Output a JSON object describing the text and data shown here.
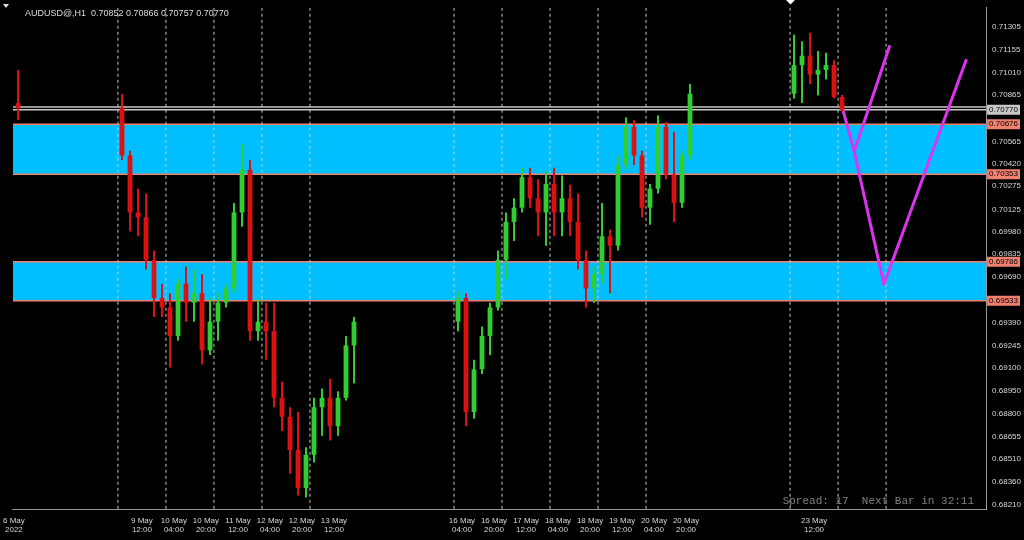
{
  "chart_data": {
    "type": "candlestick",
    "title": "AUDUSD@,H1  0.70852 0.70866 0.70757 0.70770",
    "annotations": [
      "Spread: 17  Next Bar in 32:11"
    ],
    "x": [
      "2022-05-06T22:00",
      "2022-05-09T02:00",
      "2022-05-09T06:00",
      "2022-05-09T10:00",
      "2022-05-09T14:00",
      "2022-05-09T18:00",
      "2022-05-09T22:00",
      "2022-05-10T02:00",
      "2022-05-10T06:00",
      "2022-05-10T10:00",
      "2022-05-10T14:00",
      "2022-05-10T18:00",
      "2022-05-10T22:00",
      "2022-05-11T02:00",
      "2022-05-11T06:00",
      "2022-05-11T10:00",
      "2022-05-11T14:00",
      "2022-05-11T18:00",
      "2022-05-11T22:00",
      "2022-05-12T02:00",
      "2022-05-12T06:00",
      "2022-05-12T10:00",
      "2022-05-12T14:00",
      "2022-05-12T18:00",
      "2022-05-12T22:00",
      "2022-05-13T02:00",
      "2022-05-13T06:00",
      "2022-05-13T10:00",
      "2022-05-13T14:00",
      "2022-05-13T18:00",
      "2022-05-13T22:00",
      "2022-05-16T02:00",
      "2022-05-16T06:00",
      "2022-05-16T10:00",
      "2022-05-16T14:00",
      "2022-05-16T18:00",
      "2022-05-16T22:00",
      "2022-05-17T02:00",
      "2022-05-17T06:00",
      "2022-05-17T10:00",
      "2022-05-17T14:00",
      "2022-05-17T18:00",
      "2022-05-17T22:00",
      "2022-05-18T02:00",
      "2022-05-18T06:00",
      "2022-05-18T10:00",
      "2022-05-18T14:00",
      "2022-05-18T18:00",
      "2022-05-18T22:00",
      "2022-05-19T02:00",
      "2022-05-19T06:00",
      "2022-05-19T10:00",
      "2022-05-19T14:00",
      "2022-05-19T18:00",
      "2022-05-19T22:00",
      "2022-05-20T02:00",
      "2022-05-20T06:00",
      "2022-05-20T10:00",
      "2022-05-20T14:00",
      "2022-05-20T18:00",
      "2022-05-20T22:00",
      "2022-05-23T02:00",
      "2022-05-23T06:00",
      "2022-05-23T10:00",
      "2022-05-23T14:00",
      "2022-05-23T18:00",
      "2022-05-23T22:00",
      "2022-05-24T02:00"
    ],
    "ohlc": [
      [
        0.70813,
        0.71028,
        0.70702,
        0.70782
      ],
      [
        0.70782,
        0.70874,
        0.70444,
        0.70474
      ],
      [
        0.70474,
        0.70505,
        0.69982,
        0.70105
      ],
      [
        0.70105,
        0.70259,
        0.69951,
        0.70074
      ],
      [
        0.70074,
        0.70228,
        0.69736,
        0.69798
      ],
      [
        0.69798,
        0.69859,
        0.69428,
        0.69551
      ],
      [
        0.69551,
        0.69644,
        0.69428,
        0.6949
      ],
      [
        0.6949,
        0.69582,
        0.69102,
        0.69305
      ],
      [
        0.69305,
        0.69674,
        0.69274,
        0.69644
      ],
      [
        0.69644,
        0.69755,
        0.69398,
        0.69521
      ],
      [
        0.69521,
        0.69736,
        0.69398,
        0.69582
      ],
      [
        0.69582,
        0.69705,
        0.69121,
        0.69213
      ],
      [
        0.69213,
        0.69551,
        0.69182,
        0.69398
      ],
      [
        0.69398,
        0.69582,
        0.69274,
        0.69521
      ],
      [
        0.69521,
        0.69644,
        0.6949,
        0.69613
      ],
      [
        0.69613,
        0.70167,
        0.69582,
        0.70105
      ],
      [
        0.70105,
        0.70548,
        0.70013,
        0.70382
      ],
      [
        0.70382,
        0.70444,
        0.69274,
        0.69336
      ],
      [
        0.69336,
        0.69551,
        0.69274,
        0.69398
      ],
      [
        0.69398,
        0.69521,
        0.69151,
        0.69336
      ],
      [
        0.69336,
        0.69521,
        0.68844,
        0.68905
      ],
      [
        0.68905,
        0.6901,
        0.6869,
        0.68782
      ],
      [
        0.68782,
        0.68844,
        0.68413,
        0.68567
      ],
      [
        0.68567,
        0.68813,
        0.68272,
        0.68321
      ],
      [
        0.68321,
        0.68585,
        0.68259,
        0.68536
      ],
      [
        0.68536,
        0.68905,
        0.68487,
        0.68844
      ],
      [
        0.68844,
        0.68966,
        0.68659,
        0.68905
      ],
      [
        0.68905,
        0.69028,
        0.68628,
        0.68721
      ],
      [
        0.68721,
        0.68948,
        0.68659,
        0.68905
      ],
      [
        0.68905,
        0.69305,
        0.68887,
        0.69244
      ],
      [
        0.69244,
        0.69428,
        0.68998,
        0.69398
      ],
      [
        0.69398,
        0.69594,
        0.69336,
        0.69551
      ],
      [
        0.69551,
        0.69582,
        0.68721,
        0.68813
      ],
      [
        0.68813,
        0.69151,
        0.6877,
        0.6909
      ],
      [
        0.6909,
        0.69367,
        0.69059,
        0.69305
      ],
      [
        0.69305,
        0.69521,
        0.69182,
        0.6949
      ],
      [
        0.6949,
        0.69859,
        0.69471,
        0.69798
      ],
      [
        0.69798,
        0.70105,
        0.69674,
        0.70044
      ],
      [
        0.70044,
        0.70197,
        0.69921,
        0.70136
      ],
      [
        0.70136,
        0.70394,
        0.70105,
        0.70333
      ],
      [
        0.70333,
        0.70394,
        0.70136,
        0.70197
      ],
      [
        0.70197,
        0.7032,
        0.69951,
        0.70105
      ],
      [
        0.70105,
        0.7037,
        0.6989,
        0.7029
      ],
      [
        0.7029,
        0.70394,
        0.69951,
        0.70105
      ],
      [
        0.70105,
        0.70345,
        0.69951,
        0.70197
      ],
      [
        0.70197,
        0.70284,
        0.69951,
        0.70044
      ],
      [
        0.70044,
        0.70228,
        0.69736,
        0.69798
      ],
      [
        0.69798,
        0.69859,
        0.6949,
        0.69613
      ],
      [
        0.69613,
        0.69755,
        0.69521,
        0.69705
      ],
      [
        0.69705,
        0.70167,
        0.69644,
        0.69951
      ],
      [
        0.69951,
        0.69994,
        0.69582,
        0.6989
      ],
      [
        0.6989,
        0.70474,
        0.69859,
        0.70413
      ],
      [
        0.70413,
        0.7072,
        0.70382,
        0.70659
      ],
      [
        0.70659,
        0.70702,
        0.70413,
        0.70474
      ],
      [
        0.70474,
        0.70505,
        0.70074,
        0.70136
      ],
      [
        0.70136,
        0.7029,
        0.70025,
        0.70259
      ],
      [
        0.70259,
        0.70733,
        0.70228,
        0.70659
      ],
      [
        0.70659,
        0.7069,
        0.7032,
        0.70351
      ],
      [
        0.70351,
        0.70628,
        0.70044,
        0.70167
      ],
      [
        0.70167,
        0.70505,
        0.70136,
        0.70474
      ],
      [
        0.70474,
        0.70936,
        0.70444,
        0.70874
      ],
      [
        0.70874,
        0.71256,
        0.70843,
        0.71059
      ],
      [
        0.71059,
        0.71213,
        0.70813,
        0.7112
      ],
      [
        0.7112,
        0.71268,
        0.70936,
        0.70997
      ],
      [
        0.70997,
        0.71151,
        0.70862,
        0.71028
      ],
      [
        0.71028,
        0.71139,
        0.70966,
        0.71059
      ],
      [
        0.71059,
        0.7109,
        0.70843,
        0.70852
      ],
      [
        0.70852,
        0.70866,
        0.70757,
        0.7077
      ]
    ],
    "colors": [
      "#dd1111",
      "#dd1111",
      "#dd1111",
      "#dd1111",
      "#dd1111",
      "#dd1111",
      "#dd1111",
      "#dd1111",
      "#32cd32",
      "#dd1111",
      "#32cd32",
      "#dd1111",
      "#32cd32",
      "#32cd32",
      "#32cd32",
      "#32cd32",
      "#32cd32",
      "#dd1111",
      "#32cd32",
      "#dd1111",
      "#dd1111",
      "#dd1111",
      "#dd1111",
      "#dd1111",
      "#32cd32",
      "#32cd32",
      "#32cd32",
      "#dd1111",
      "#32cd32",
      "#32cd32",
      "#32cd32",
      "#32cd32",
      "#dd1111",
      "#32cd32",
      "#32cd32",
      "#32cd32",
      "#32cd32",
      "#32cd32",
      "#32cd32",
      "#32cd32",
      "#dd1111",
      "#dd1111",
      "#32cd32",
      "#dd1111",
      "#32cd32",
      "#dd1111",
      "#dd1111",
      "#dd1111",
      "#32cd32",
      "#32cd32",
      "#dd1111",
      "#32cd32",
      "#32cd32",
      "#dd1111",
      "#dd1111",
      "#32cd32",
      "#32cd32",
      "#dd1111",
      "#dd1111",
      "#32cd32",
      "#32cd32",
      "#32cd32",
      "#32cd32",
      "#dd1111",
      "#32cd32",
      "#32cd32",
      "#dd1111",
      "#dd1111"
    ],
    "series": [
      {
        "type": "line",
        "color": "#dd33ee",
        "x": [
          "2022-05-24T02:12",
          "2022-05-24T08:06",
          "2022-05-25T01:42"
        ],
        "values": [
          0.7078,
          0.705,
          0.7118
        ]
      },
      {
        "type": "line",
        "color": "#dd33ee",
        "x": [
          "2022-05-24T08:06",
          "2022-05-24T22:54",
          "2022-05-26T16:00"
        ],
        "values": [
          0.705,
          0.6964,
          0.7109
        ]
      }
    ],
    "xlim": [
      "2022-05-06T19:30",
      "2022-05-27T02:00"
    ],
    "xticks": [
      {
        "value": "2022-05-06T20:00",
        "label": "6 May 2022"
      },
      {
        "value": "2022-05-09T12:00",
        "label": "9 May 12:00"
      },
      {
        "value": "2022-05-10T04:00",
        "label": "10 May 04:00"
      },
      {
        "value": "2022-05-10T20:00",
        "label": "10 May 20:00"
      },
      {
        "value": "2022-05-11T12:00",
        "label": "11 May 12:00"
      },
      {
        "value": "2022-05-12T04:00",
        "label": "12 May 04:00"
      },
      {
        "value": "2022-05-12T20:00",
        "label": "12 May 20:00"
      },
      {
        "value": "2022-05-13T12:00",
        "label": "13 May 12:00"
      },
      {
        "value": "2022-05-16T04:00",
        "label": "16 May 04:00"
      },
      {
        "value": "2022-05-16T20:00",
        "label": "16 May 20:00"
      },
      {
        "value": "2022-05-17T12:00",
        "label": "17 May 12:00"
      },
      {
        "value": "2022-05-18T04:00",
        "label": "18 May 04:00"
      },
      {
        "value": "2022-05-18T20:00",
        "label": "18 May 20:00"
      },
      {
        "value": "2022-05-19T12:00",
        "label": "19 May 12:00"
      },
      {
        "value": "2022-05-20T04:00",
        "label": "20 May 04:00"
      },
      {
        "value": "2022-05-20T20:00",
        "label": "20 May 20:00"
      },
      {
        "value": "2022-05-23T12:00",
        "label": "23 May 12:00"
      }
    ],
    "ylim": [
      0.6818,
      0.7143
    ],
    "yticks": [
      0.71305,
      0.71155,
      {
        "value": 0.7101,
        "label": "0.71010"
      },
      0.70865,
      0.70565,
      {
        "value": 0.7042,
        "label": "0.70420"
      },
      0.70275,
      0.70125,
      {
        "value": 0.6998,
        "label": "0.69980"
      },
      0.69835,
      {
        "value": 0.6969,
        "label": "0.69690"
      },
      {
        "value": 0.6939,
        "label": "0.69390"
      },
      0.69245,
      {
        "value": 0.691,
        "label": "0.69100"
      },
      {
        "value": 0.6895,
        "label": "0.68950"
      },
      {
        "value": 0.688,
        "label": "0.68800"
      },
      0.68655,
      {
        "value": 0.6851,
        "label": "0.68510"
      },
      {
        "value": 0.6836,
        "label": "0.68360"
      },
      {
        "value": 0.6821,
        "label": "0.68210"
      }
    ],
    "bands": [
      {
        "axis": "y",
        "from": 0.70353,
        "to": 0.70676,
        "color": "#00bfff"
      },
      {
        "axis": "y",
        "from": 0.69533,
        "to": 0.69786,
        "color": "#00bfff"
      }
    ],
    "ref_lines": [
      {
        "axis": "y",
        "value": 0.70676,
        "label": "0.70676",
        "color": "#f08070"
      },
      {
        "axis": "y",
        "value": 0.70353,
        "label": "0.70353",
        "color": "#f08070"
      },
      {
        "axis": "y",
        "value": 0.69786,
        "label": "0.69786",
        "color": "#f08070"
      },
      {
        "axis": "y",
        "value": 0.69533,
        "label": "0.69533",
        "color": "#f08070"
      },
      {
        "axis": "y",
        "value": 0.70787,
        "color": "#c8c8c8"
      },
      {
        "axis": "y",
        "value": 0.7077,
        "label": "0.70770",
        "color": "#c8c8c8"
      },
      {
        "axis": "x",
        "value": "2022-05-09",
        "color": "#c8c8c8",
        "line_style": "dashed"
      },
      {
        "axis": "x",
        "value": "2022-05-10",
        "color": "#c8c8c8",
        "line_style": "dashed"
      },
      {
        "axis": "x",
        "value": "2022-05-11",
        "color": "#c8c8c8",
        "line_style": "dashed"
      },
      {
        "axis": "x",
        "value": "2022-05-12",
        "color": "#c8c8c8",
        "line_style": "dashed"
      },
      {
        "axis": "x",
        "value": "2022-05-13",
        "color": "#c8c8c8",
        "line_style": "dashed"
      },
      {
        "axis": "x",
        "value": "2022-05-16",
        "color": "#c8c8c8",
        "line_style": "dashed"
      },
      {
        "axis": "x",
        "value": "2022-05-17",
        "color": "#c8c8c8",
        "line_style": "dashed"
      },
      {
        "axis": "x",
        "value": "2022-05-18",
        "color": "#c8c8c8",
        "line_style": "dashed"
      },
      {
        "axis": "x",
        "value": "2022-05-19",
        "color": "#c8c8c8",
        "line_style": "dashed"
      },
      {
        "axis": "x",
        "value": "2022-05-20",
        "color": "#c8c8c8",
        "line_style": "dashed"
      },
      {
        "axis": "x",
        "value": "2022-05-23",
        "color": "#c8c8c8",
        "line_style": "dashed"
      },
      {
        "axis": "x",
        "value": "2022-05-24",
        "color": "#c8c8c8",
        "line_style": "dashed"
      },
      {
        "axis": "x",
        "value": "2022-05-25",
        "color": "#c8c8c8",
        "line_style": "dashed"
      }
    ]
  }
}
